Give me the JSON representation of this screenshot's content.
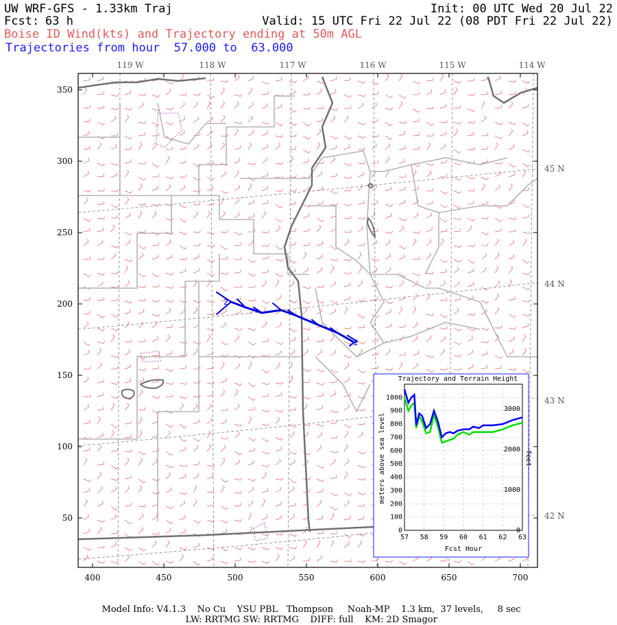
{
  "header": {
    "title": "UW WRF-GFS - 1.33km Traj",
    "init": "Init: 00 UTC Wed 20 Jul 22",
    "fcst_label": "Fcst:",
    "fcst_value": "63 h",
    "valid": "Valid: 15 UTC Fri 22 Jul 22 (08 PDT Fri 22 Jul 22)",
    "subtitle": "Boise ID Wind(kts) and Trajectory ending at 50m AGL",
    "traj_range": "Trajectories from hour  57.000 to  63.000"
  },
  "map": {
    "x_ticks": [
      "400",
      "450",
      "500",
      "550",
      "600",
      "650",
      "700"
    ],
    "y_ticks": [
      "50",
      "100",
      "150",
      "200",
      "250",
      "300",
      "350"
    ],
    "lon_labels": [
      "119 W",
      "118 W",
      "117 W",
      "116 W",
      "115 W",
      "114 W"
    ],
    "lat_labels": [
      "45 N",
      "44 N",
      "43 N",
      "42 N"
    ],
    "trajectory_markers": [
      "2",
      "2"
    ],
    "colors": {
      "wind_barbs": "#e05a5a",
      "trajectory": "#0000dd",
      "borders": "#b4b4b4",
      "state_lines": "#707070",
      "lakes": "#c080d0"
    }
  },
  "inset": {
    "title": "Trajectory and Terrain Height",
    "ylabel_left": "meters above sea level",
    "ylabel_right": "feet",
    "xlabel": "Fcst Hour",
    "x_ticks": [
      "57",
      "58",
      "59",
      "60",
      "61",
      "62",
      "63"
    ],
    "y_ticks_m": [
      "0",
      "100",
      "200",
      "300",
      "400",
      "500",
      "600",
      "700",
      "800",
      "900",
      "1000"
    ],
    "y_ticks_ft": [
      "0",
      "1000",
      "2000",
      "3000"
    ]
  },
  "chart_data": {
    "type": "line",
    "title": "Trajectory and Terrain Height",
    "xlabel": "Fcst Hour",
    "ylabel": "meters above sea level",
    "xlim": [
      57,
      63
    ],
    "ylim": [
      0,
      1100
    ],
    "series": [
      {
        "color": "#0000ff",
        "x": [
          57.0,
          57.2,
          57.35,
          57.5,
          57.6,
          57.75,
          57.9,
          58.1,
          58.3,
          58.5,
          58.7,
          58.9,
          59.1,
          59.3,
          59.5,
          59.7,
          60.0,
          60.3,
          60.5,
          60.8,
          61.0,
          61.5,
          62.0,
          62.5,
          63.0
        ],
        "values": [
          1060,
          960,
          1000,
          1020,
          790,
          880,
          860,
          770,
          800,
          900,
          820,
          700,
          730,
          740,
          730,
          750,
          760,
          760,
          780,
          770,
          790,
          790,
          800,
          830,
          850
        ]
      },
      {
        "color": "#00dd00",
        "x": [
          57.0,
          57.2,
          57.35,
          57.5,
          57.6,
          57.75,
          57.9,
          58.1,
          58.3,
          58.5,
          58.7,
          58.9,
          59.1,
          59.3,
          59.5,
          59.7,
          60.0,
          60.3,
          60.5,
          60.8,
          61.0,
          61.5,
          62.0,
          62.5,
          63.0
        ],
        "values": [
          1000,
          900,
          940,
          960,
          770,
          860,
          820,
          730,
          740,
          870,
          780,
          660,
          670,
          680,
          690,
          720,
          740,
          720,
          740,
          740,
          740,
          740,
          760,
          790,
          810
        ]
      }
    ]
  }
}
